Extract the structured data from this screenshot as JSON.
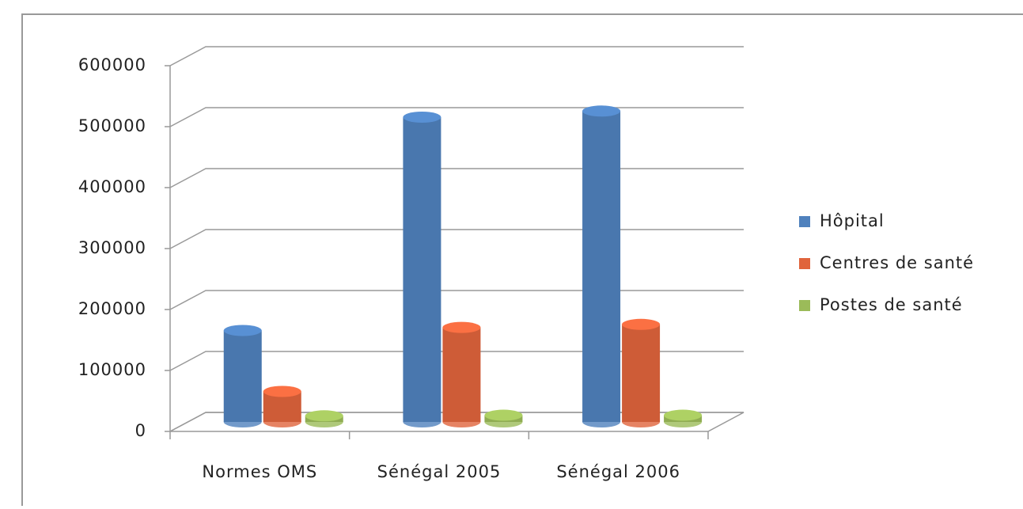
{
  "chart_data": {
    "type": "bar3d",
    "categories": [
      "Normes OMS",
      "Sénégal 2005",
      "Sénégal 2006"
    ],
    "series": [
      {
        "name": "Hôpital",
        "color": "#4f81bd",
        "values": [
          150000,
          500000,
          510000
        ]
      },
      {
        "name": "Centres de santé",
        "color": "#e0643c",
        "values": [
          50000,
          155000,
          160000
        ]
      },
      {
        "name": "Postes de santé",
        "color": "#9bbb59",
        "values": [
          10000,
          11000,
          11000
        ]
      }
    ],
    "ylim": [
      0,
      600000
    ],
    "yticks": [
      0,
      100000,
      200000,
      300000,
      400000,
      500000,
      600000
    ],
    "grid": true,
    "legend": "right"
  }
}
